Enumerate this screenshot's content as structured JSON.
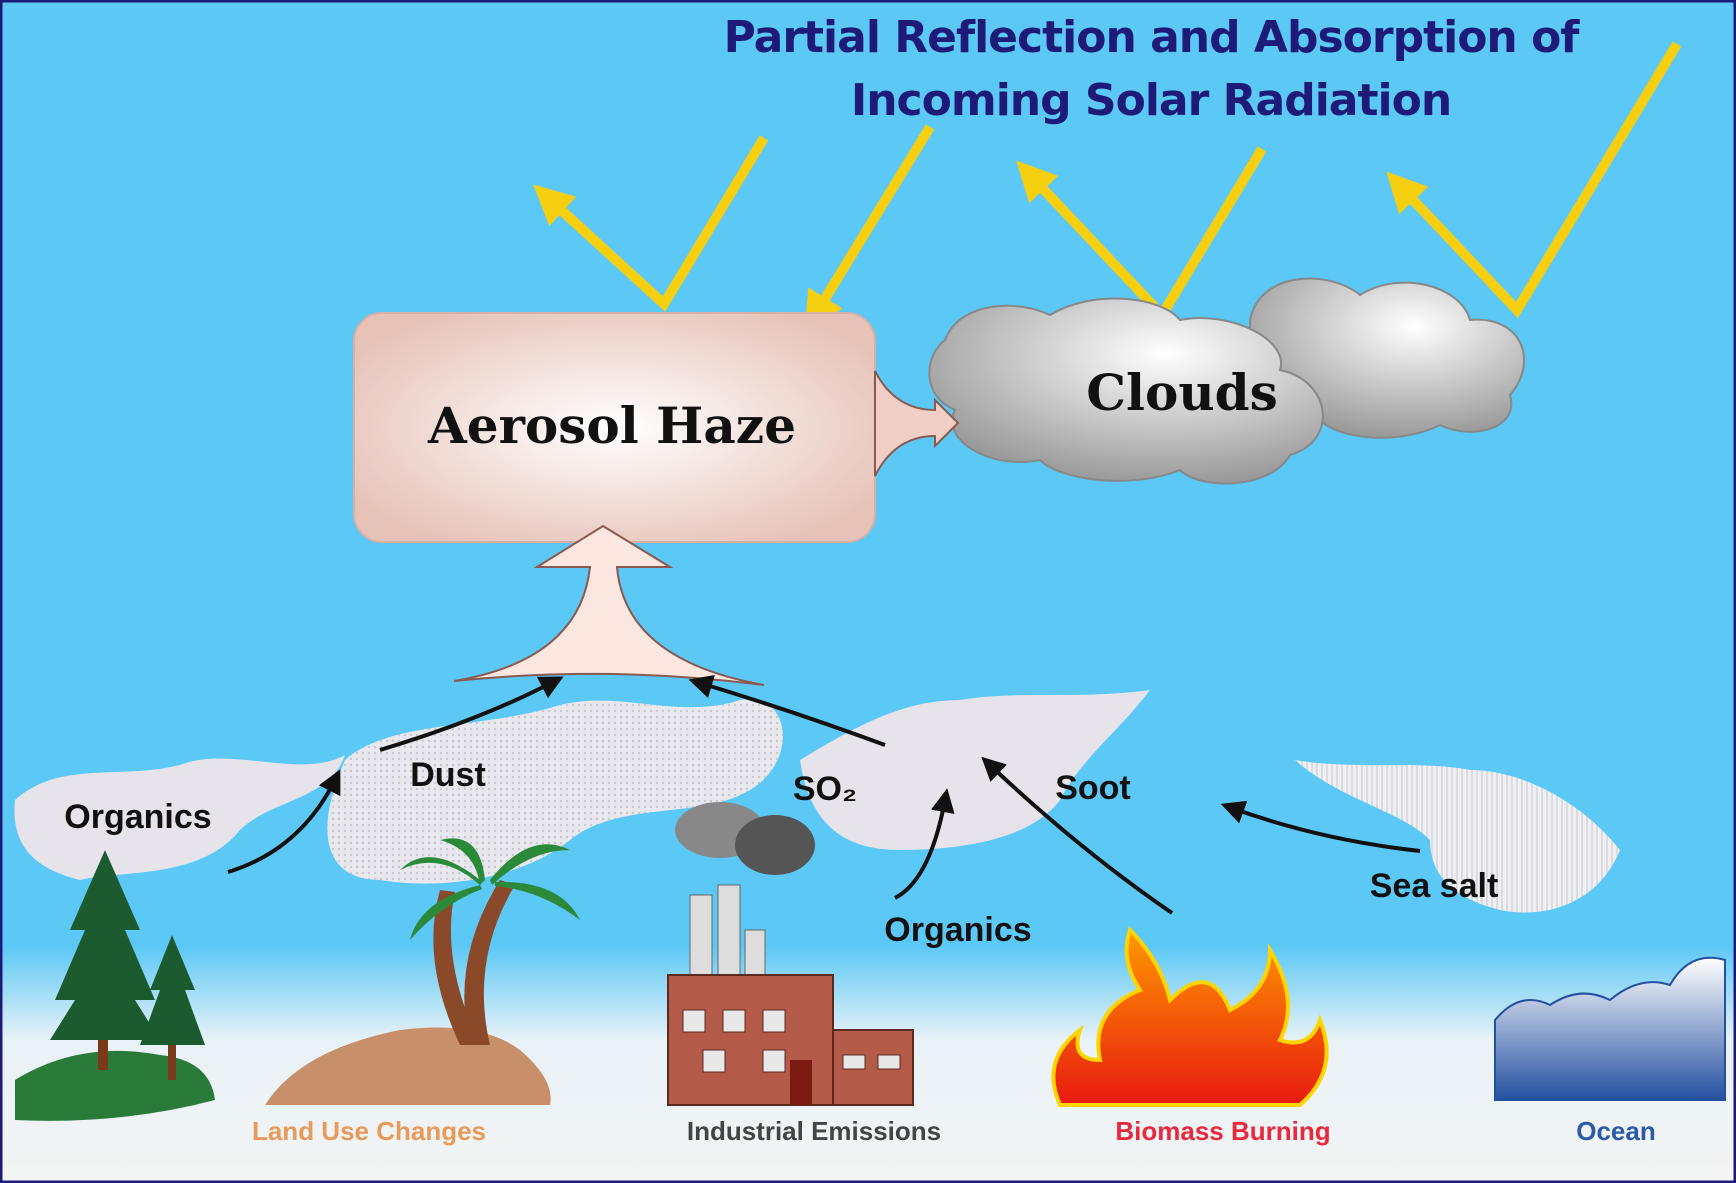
{
  "title": {
    "lines": [
      "Partial Reflection and Absorption of",
      "Incoming Solar Radiation"
    ]
  },
  "nodes": {
    "aerosol_haze": "Aerosol Haze",
    "clouds": "Clouds"
  },
  "particles": [
    "Organics",
    "Dust",
    "SO₂",
    "Soot",
    "Organics",
    "Sea salt"
  ],
  "sources": [
    "Land Use Changes",
    "Industrial Emissions",
    "Biomass Burning",
    "Ocean"
  ]
}
